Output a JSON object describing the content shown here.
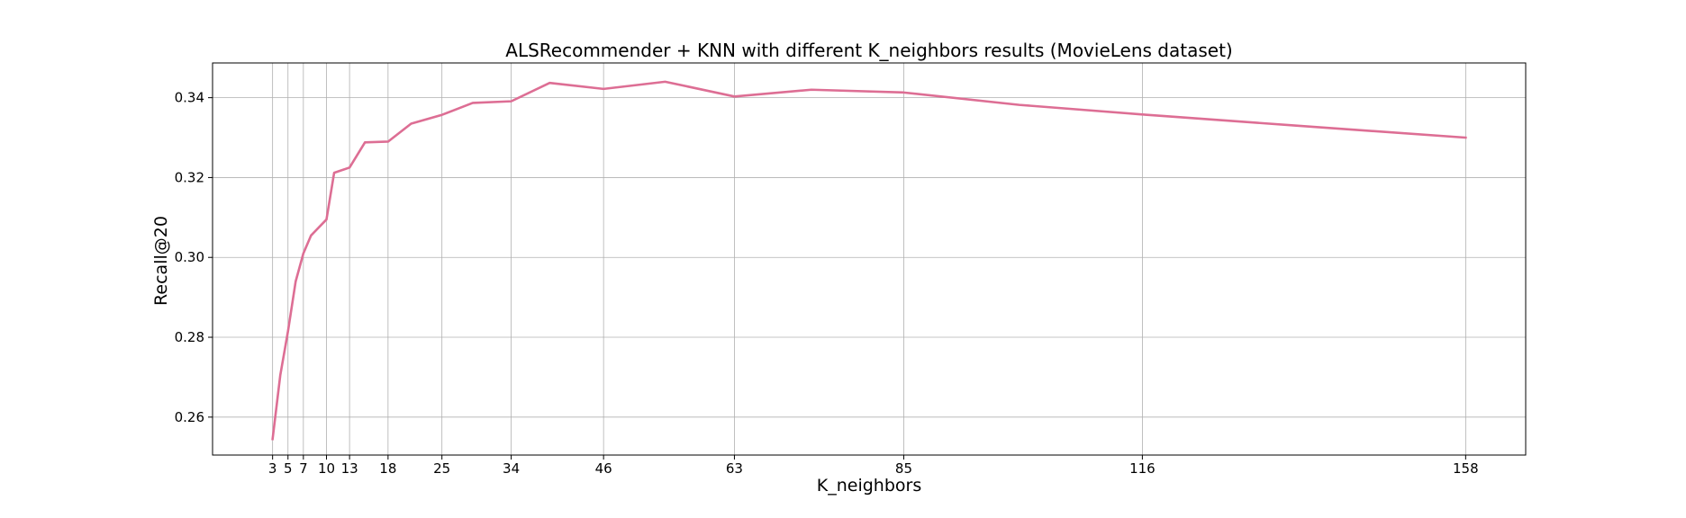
{
  "chart_data": {
    "type": "line",
    "title": "ALSRecommender + KNN with different K_neighbors results (MovieLens dataset)",
    "xlabel": "K_neighbors",
    "ylabel": "Recall@20",
    "x_ticks": [
      3,
      5,
      7,
      10,
      13,
      18,
      25,
      34,
      46,
      63,
      85,
      116,
      158
    ],
    "y_ticks": [
      0.26,
      0.28,
      0.3,
      0.32,
      0.34
    ],
    "xlim": [
      -4.8,
      165.8
    ],
    "ylim": [
      0.2505,
      0.3487
    ],
    "grid": true,
    "series": [
      {
        "color": "#dd6e94",
        "x": [
          3,
          4,
          5,
          6,
          7,
          8,
          10,
          11,
          13,
          15,
          18,
          21,
          25,
          29,
          34,
          39,
          46,
          54,
          63,
          73,
          85,
          100,
          116,
          136,
          158
        ],
        "y": [
          0.2545,
          0.2705,
          0.2815,
          0.294,
          0.301,
          0.3055,
          0.3095,
          0.3212,
          0.3225,
          0.3288,
          0.329,
          0.3335,
          0.3357,
          0.3387,
          0.3391,
          0.3437,
          0.3422,
          0.344,
          0.3403,
          0.342,
          0.3413,
          0.3382,
          0.3358,
          0.333,
          0.33
        ]
      }
    ]
  }
}
